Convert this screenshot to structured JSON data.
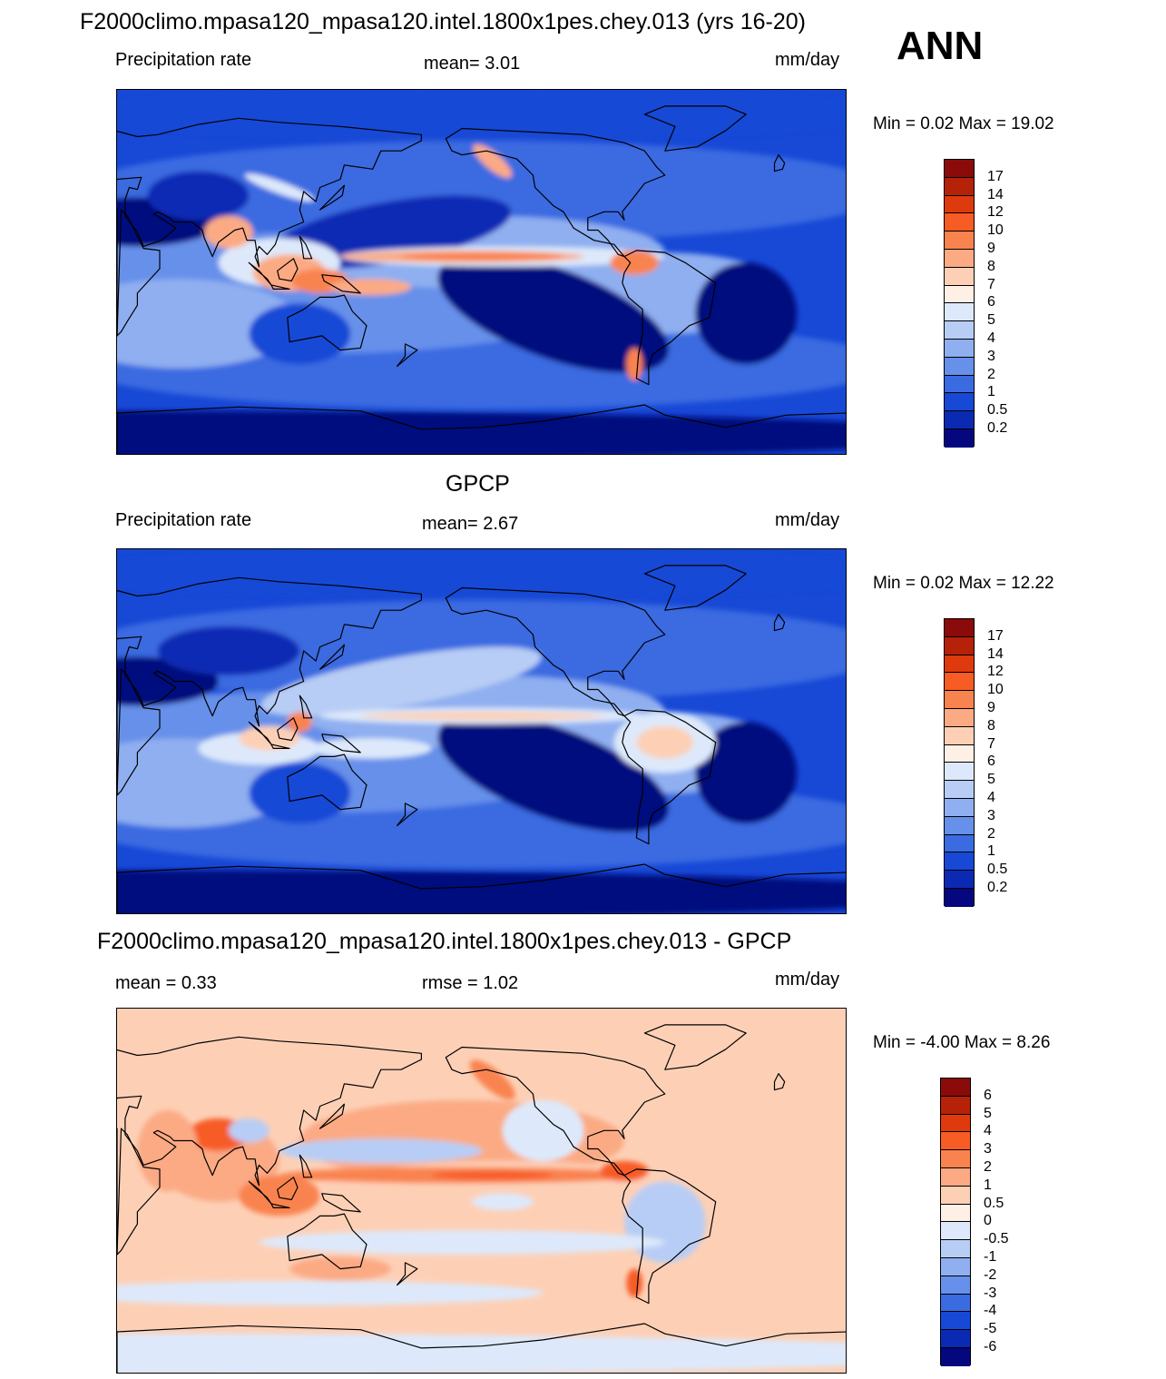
{
  "header": {
    "title": "F2000climo.mpasa120_mpasa120.intel.1800x1pes.chey.013 (yrs 16-20)",
    "season": "ANN"
  },
  "panels": [
    {
      "id": "model",
      "title": "",
      "left_label": "Precipitation rate",
      "center_label": "mean=   3.01",
      "right_label": "mm/day",
      "minmax": "Min =    0.02 Max =  19.02",
      "colorbar": {
        "labels": [
          "17",
          "14",
          "12",
          "10",
          "9",
          "8",
          "7",
          "6",
          "5",
          "4",
          "3",
          "2",
          "1",
          "0.5",
          "0.2"
        ],
        "colors": [
          "#8b0a0a",
          "#b52208",
          "#df3a0e",
          "#f75c25",
          "#f9834f",
          "#fbaa84",
          "#fdd0b6",
          "#fff0e6",
          "#dde9fb",
          "#b7cdf5",
          "#8faff0",
          "#6690ea",
          "#3a6be1",
          "#1748d6",
          "#0b2ab4",
          "#05077e"
        ]
      }
    },
    {
      "id": "obs",
      "title": "GPCP",
      "left_label": "Precipitation rate",
      "center_label": "mean=   2.67",
      "right_label": "mm/day",
      "minmax": "Min =    0.02 Max =  12.22",
      "colorbar": {
        "labels": [
          "17",
          "14",
          "12",
          "10",
          "9",
          "8",
          "7",
          "6",
          "5",
          "4",
          "3",
          "2",
          "1",
          "0.5",
          "0.2"
        ],
        "colors": [
          "#8b0a0a",
          "#b52208",
          "#df3a0e",
          "#f75c25",
          "#f9834f",
          "#fbaa84",
          "#fdd0b6",
          "#fff0e6",
          "#dde9fb",
          "#b7cdf5",
          "#8faff0",
          "#6690ea",
          "#3a6be1",
          "#1748d6",
          "#0b2ab4",
          "#05077e"
        ]
      }
    },
    {
      "id": "diff",
      "title": "F2000climo.mpasa120_mpasa120.intel.1800x1pes.chey.013 - GPCP",
      "left_label": "mean =    0.33",
      "center_label": "rmse =    1.02",
      "right_label": "mm/day",
      "minmax": "Min =  -4.00 Max =    8.26",
      "colorbar": {
        "labels": [
          "6",
          "5",
          "4",
          "3",
          "2",
          "1",
          "0.5",
          "0",
          "-0.5",
          "-1",
          "-2",
          "-3",
          "-4",
          "-5",
          "-6"
        ],
        "colors": [
          "#8b0a0a",
          "#b52208",
          "#df3a0e",
          "#f75c25",
          "#f9834f",
          "#fbaa84",
          "#fdd0b6",
          "#fff0e6",
          "#dde9fb",
          "#b7cdf5",
          "#8faff0",
          "#6690ea",
          "#3a6be1",
          "#1748d6",
          "#0b2ab4",
          "#05077e"
        ]
      }
    }
  ]
}
